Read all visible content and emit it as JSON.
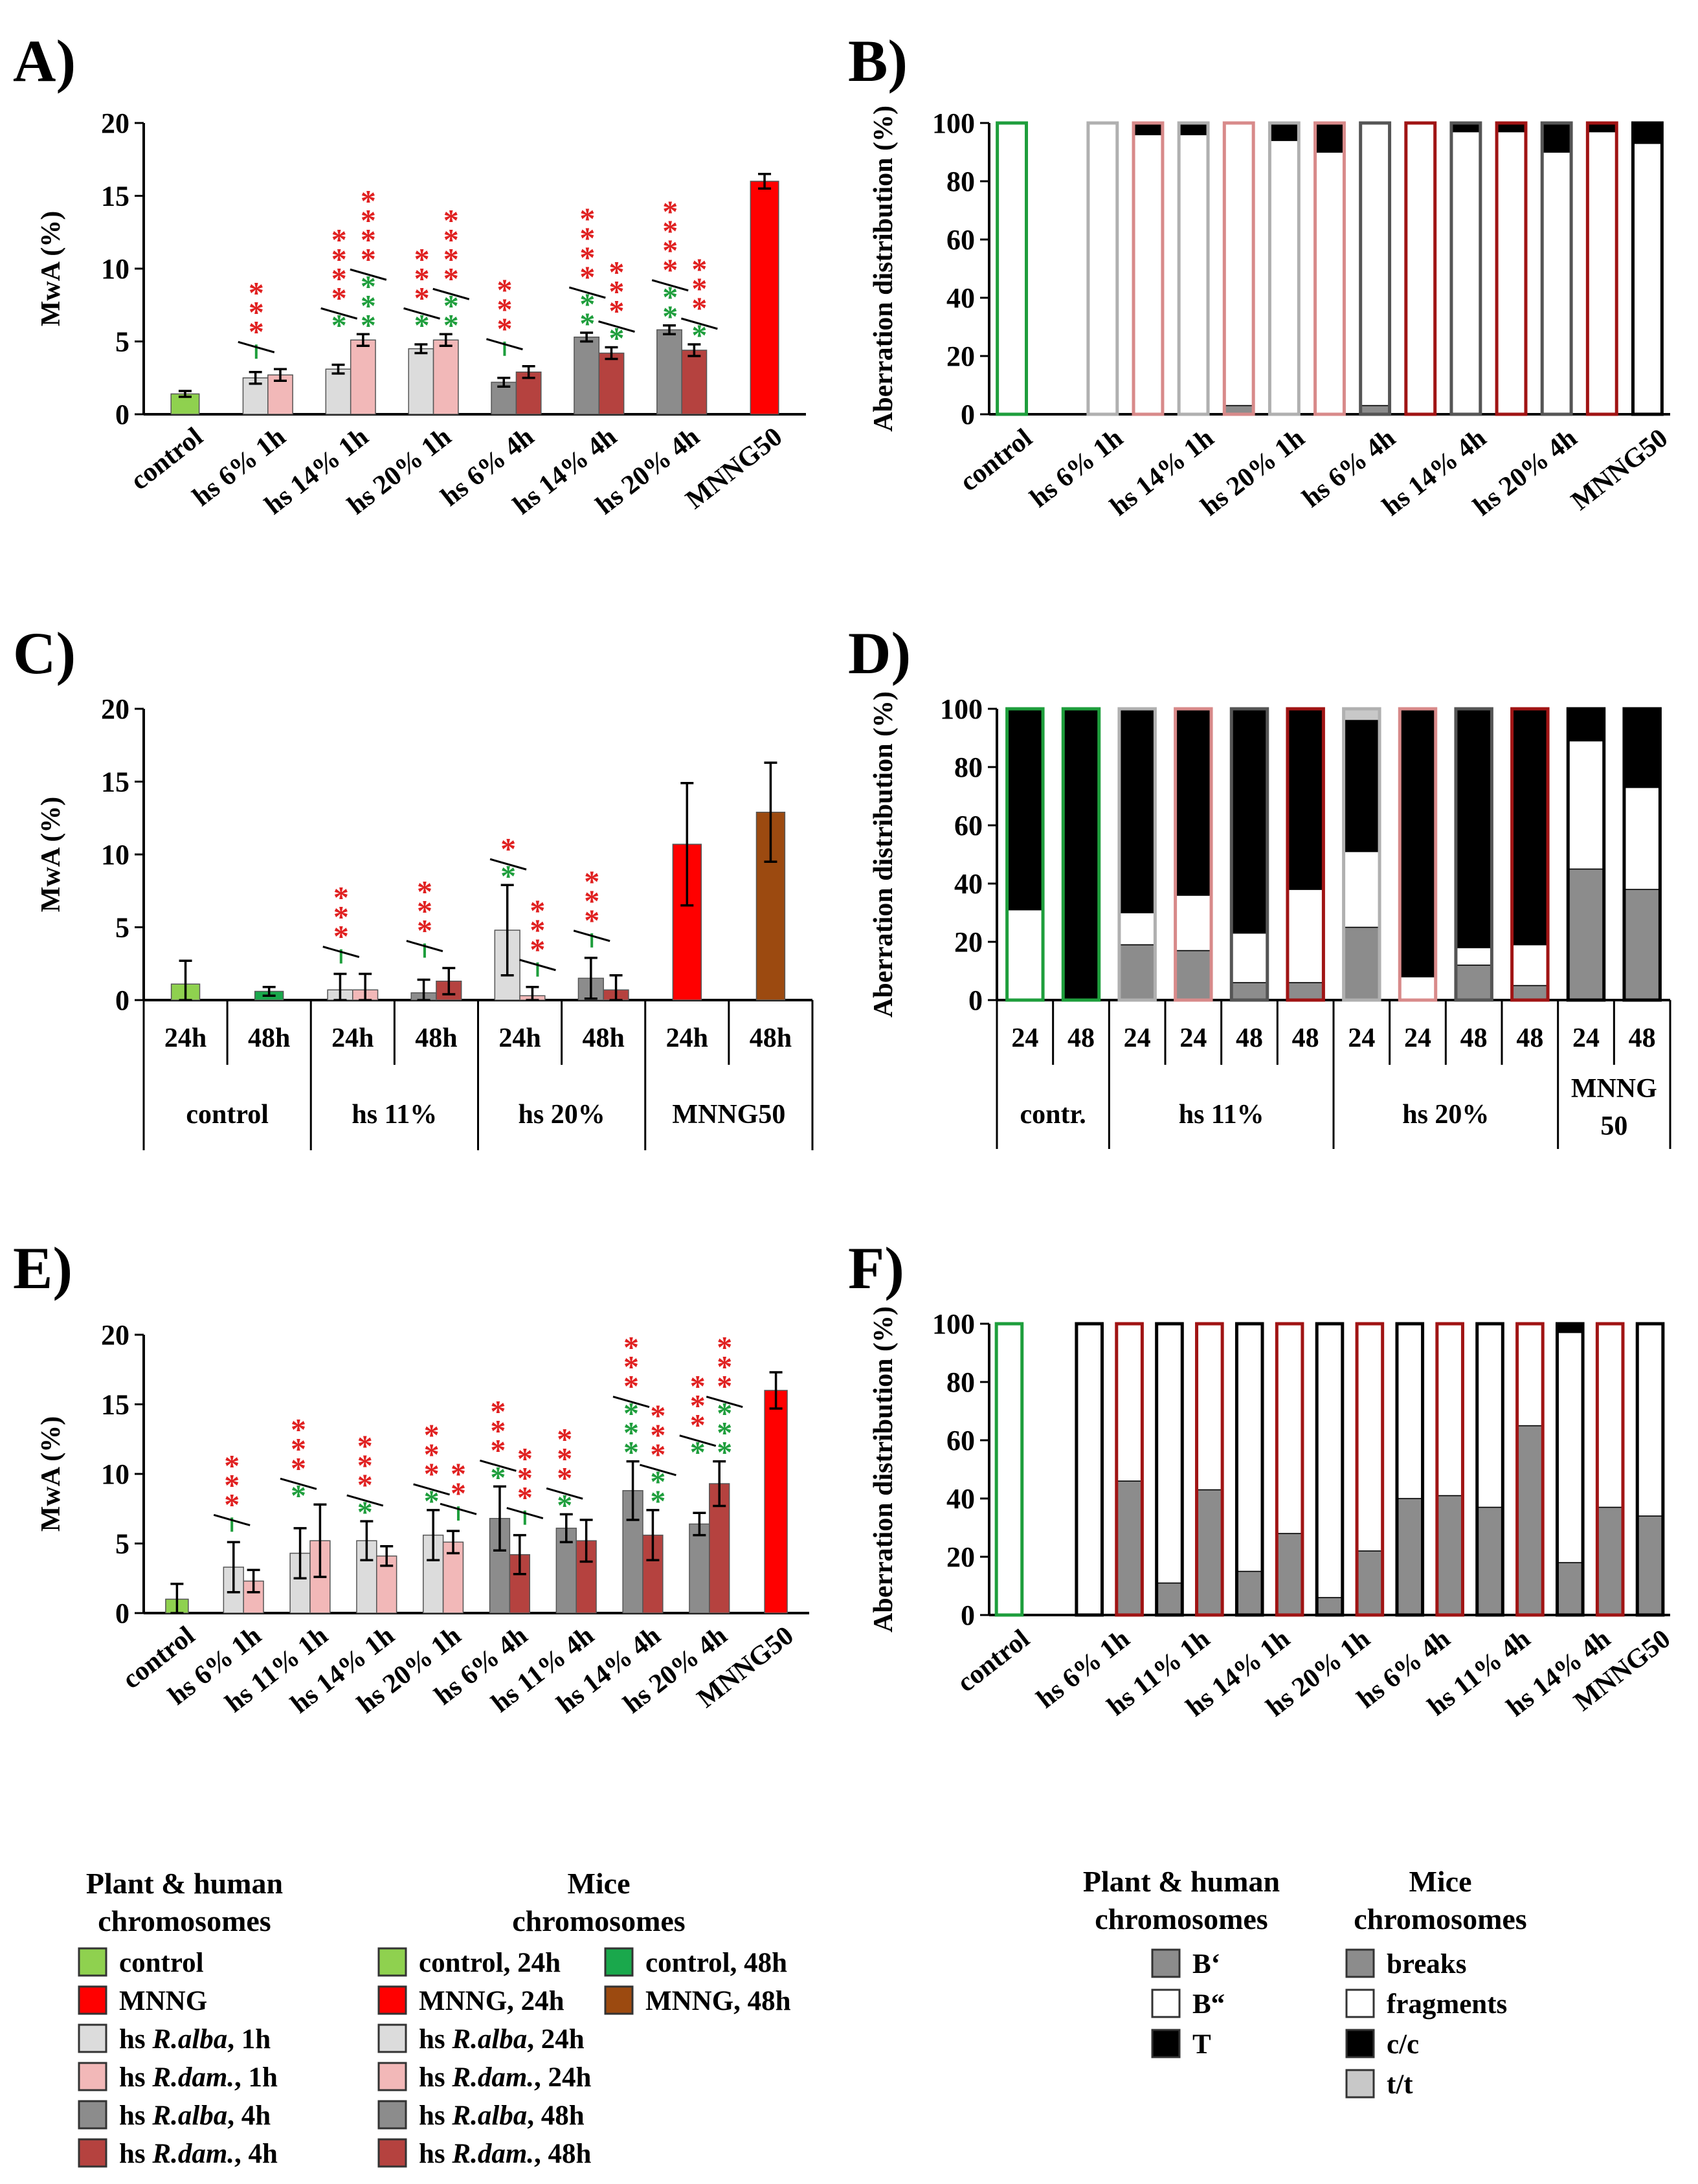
{
  "colors": {
    "control": "#8fd14f",
    "control48": "#1aa84c",
    "mnng": "#ff0000",
    "mnng48": "#9c4a10",
    "ralba": "#dcdcdc",
    "rdam": "#f2b8b8",
    "ralba4": "#8c8c8c",
    "rdam4": "#b5423f",
    "green": "#1e9e3c",
    "red": "#e02020",
    "darkred": "#a01414",
    "axis": "#000000"
  },
  "chart_data": [
    {
      "id": "A",
      "type": "bar",
      "panel_label": "A)",
      "ylabel": "MwA (%)",
      "ylim": [
        0,
        20
      ],
      "yticks": [
        "0",
        "5",
        "10",
        "15",
        "20"
      ],
      "categories": [
        "control",
        "hs 6% 1h",
        "hs 14% 1h",
        "hs 20% 1h",
        "hs 6% 4h",
        "hs 14% 4h",
        "hs 20% 4h",
        "MNNG50"
      ],
      "bars": [
        {
          "group": 0,
          "series": "control",
          "value": 1.4,
          "err": 0.2
        },
        {
          "group": 1,
          "series": "hs R.alba, 1h",
          "value": 2.5,
          "err": 0.4
        },
        {
          "group": 1,
          "series": "hs R.dam., 1h",
          "value": 2.7,
          "err": 0.4
        },
        {
          "group": 2,
          "series": "hs R.alba, 1h",
          "value": 3.1,
          "err": 0.3
        },
        {
          "group": 2,
          "series": "hs R.dam., 1h",
          "value": 5.1,
          "err": 0.4
        },
        {
          "group": 3,
          "series": "hs R.alba, 1h",
          "value": 4.5,
          "err": 0.3
        },
        {
          "group": 3,
          "series": "hs R.dam., 1h",
          "value": 5.1,
          "err": 0.4
        },
        {
          "group": 4,
          "series": "hs R.alba, 4h",
          "value": 2.2,
          "err": 0.3
        },
        {
          "group": 4,
          "series": "hs R.dam., 4h",
          "value": 2.9,
          "err": 0.4
        },
        {
          "group": 5,
          "series": "hs R.alba, 4h",
          "value": 5.3,
          "err": 0.3
        },
        {
          "group": 5,
          "series": "hs R.dam., 4h",
          "value": 4.2,
          "err": 0.4
        },
        {
          "group": 6,
          "series": "hs R.alba, 4h",
          "value": 5.8,
          "err": 0.3
        },
        {
          "group": 6,
          "series": "hs R.dam., 4h",
          "value": 4.4,
          "err": 0.4
        },
        {
          "group": 7,
          "series": "MNNG",
          "value": 16.0,
          "err": 0.5
        }
      ]
    },
    {
      "id": "B",
      "type": "bar",
      "panel_label": "B)",
      "stacked": true,
      "ylabel": "Aberration distribution (%)",
      "ylim": [
        0,
        100
      ],
      "yticks": [
        "0",
        "20",
        "40",
        "60",
        "80",
        "100"
      ],
      "categories": [
        "control",
        "hs 6% 1h",
        "hs 14% 1h",
        "hs 20% 1h",
        "hs 6% 4h",
        "hs 14% 4h",
        "hs 20% 4h",
        "MNNG50"
      ],
      "bars": [
        {
          "slot": 0,
          "border": "green",
          "B1": 0,
          "B2": 100,
          "T": 0
        },
        {
          "slot": 2,
          "border": "ltgray",
          "B1": 0,
          "B2": 100,
          "T": 0
        },
        {
          "slot": 3,
          "border": "pink",
          "B1": 0,
          "B2": 96,
          "T": 4
        },
        {
          "slot": 4,
          "border": "ltgray",
          "B1": 0,
          "B2": 96,
          "T": 4
        },
        {
          "slot": 5,
          "border": "pink",
          "B1": 3,
          "B2": 97,
          "T": 0
        },
        {
          "slot": 6,
          "border": "ltgray",
          "B1": 0,
          "B2": 94,
          "T": 6
        },
        {
          "slot": 7,
          "border": "pink",
          "B1": 0,
          "B2": 90,
          "T": 10
        },
        {
          "slot": 8,
          "border": "darkgray",
          "B1": 3,
          "B2": 97,
          "T": 0
        },
        {
          "slot": 9,
          "border": "darkred",
          "B1": 0,
          "B2": 100,
          "T": 0
        },
        {
          "slot": 10,
          "border": "darkgray",
          "B1": 0,
          "B2": 97,
          "T": 3
        },
        {
          "slot": 11,
          "border": "darkred",
          "B1": 0,
          "B2": 97,
          "T": 3
        },
        {
          "slot": 12,
          "border": "darkgray",
          "B1": 0,
          "B2": 90,
          "T": 10
        },
        {
          "slot": 13,
          "border": "darkred",
          "B1": 0,
          "B2": 97,
          "T": 3
        },
        {
          "slot": 14,
          "border": "black",
          "B1": 0,
          "B2": 93,
          "T": 7
        }
      ]
    },
    {
      "id": "C",
      "type": "bar",
      "panel_label": "C)",
      "ylabel": "MwA (%)",
      "ylim": [
        0,
        20
      ],
      "yticks": [
        "0",
        "5",
        "10",
        "15",
        "20"
      ],
      "groups": [
        "24h",
        "48h",
        "24h",
        "48h",
        "24h",
        "48h",
        "24h",
        "48h"
      ],
      "supergroups": [
        "control",
        "hs 11%",
        "hs  20%",
        "MNNG50"
      ],
      "bars": [
        {
          "group": 0,
          "series": "control, 24h",
          "value": 1.1,
          "err": 1.6
        },
        {
          "group": 1,
          "series": "control, 48h",
          "value": 0.6,
          "err": 0.3
        },
        {
          "group": 2,
          "series": "hs R.alba, 24h",
          "value": 0.7,
          "err": 1.1
        },
        {
          "group": 2,
          "series": "hs R.dam., 24h",
          "value": 0.7,
          "err": 1.1
        },
        {
          "group": 3,
          "series": "hs R.alba, 48h",
          "value": 0.5,
          "err": 0.9
        },
        {
          "group": 3,
          "series": "hs R.dam., 48h",
          "value": 1.3,
          "err": 0.9
        },
        {
          "group": 4,
          "series": "hs R.alba, 24h",
          "value": 4.8,
          "err": 3.1
        },
        {
          "group": 4,
          "series": "hs R.dam., 24h",
          "value": 0.3,
          "err": 0.6
        },
        {
          "group": 5,
          "series": "hs R.alba, 48h",
          "value": 1.5,
          "err": 1.4
        },
        {
          "group": 5,
          "series": "hs R.dam., 48h",
          "value": 0.7,
          "err": 1.0
        },
        {
          "group": 6,
          "series": "MNNG, 24h",
          "value": 10.7,
          "err": 4.2
        },
        {
          "group": 7,
          "series": "MNNG, 48h",
          "value": 12.9,
          "err": 3.4
        }
      ]
    },
    {
      "id": "D",
      "type": "bar",
      "panel_label": "D)",
      "stacked": true,
      "ylabel": "Aberration distribution (%)",
      "ylim": [
        0,
        100
      ],
      "yticks": [
        "0",
        "20",
        "40",
        "60",
        "80",
        "100"
      ],
      "bar_labels": [
        "24",
        "48",
        "24",
        "24",
        "48",
        "48",
        "24",
        "24",
        "48",
        "48",
        "24",
        "48"
      ],
      "supergroups": [
        "contr.",
        "hs 11%",
        "hs 20%",
        "MNNG\n50"
      ],
      "bars": [
        {
          "border": "green",
          "breaks": 0,
          "fragments": 31,
          "cc": 69,
          "tt": 0
        },
        {
          "border": "green",
          "breaks": 0,
          "fragments": 0,
          "cc": 100,
          "tt": 0
        },
        {
          "border": "ltgray",
          "breaks": 19,
          "fragments": 11,
          "cc": 70,
          "tt": 0
        },
        {
          "border": "pink",
          "breaks": 17,
          "fragments": 19,
          "cc": 64,
          "tt": 0
        },
        {
          "border": "darkgray",
          "breaks": 6,
          "fragments": 17,
          "cc": 77,
          "tt": 0
        },
        {
          "border": "darkred",
          "breaks": 6,
          "fragments": 32,
          "cc": 62,
          "tt": 0
        },
        {
          "border": "ltgray",
          "breaks": 25,
          "fragments": 26,
          "cc": 45,
          "tt": 4
        },
        {
          "border": "pink",
          "breaks": 0,
          "fragments": 8,
          "cc": 92,
          "tt": 0
        },
        {
          "border": "darkgray",
          "breaks": 12,
          "fragments": 6,
          "cc": 82,
          "tt": 0
        },
        {
          "border": "darkred",
          "breaks": 5,
          "fragments": 14,
          "cc": 81,
          "tt": 0
        },
        {
          "border": "black",
          "breaks": 45,
          "fragments": 44,
          "cc": 11,
          "tt": 0
        },
        {
          "border": "black",
          "breaks": 38,
          "fragments": 35,
          "cc": 27,
          "tt": 0
        }
      ]
    },
    {
      "id": "E",
      "type": "bar",
      "panel_label": "E)",
      "ylabel": "MwA (%)",
      "ylim": [
        0,
        20
      ],
      "yticks": [
        "0",
        "5",
        "10",
        "15",
        "20"
      ],
      "categories": [
        "control",
        "hs 6% 1h",
        "hs 11% 1h",
        "hs 14% 1h",
        "hs 20% 1h",
        "hs 6% 4h",
        "hs 11% 4h",
        "hs 14% 4h",
        "hs 20% 4h",
        "MNNG50"
      ],
      "bars": [
        {
          "group": 0,
          "series": "control",
          "value": 1.0,
          "err": 1.1
        },
        {
          "group": 1,
          "series": "hs R.alba, 1h",
          "value": 3.3,
          "err": 1.8
        },
        {
          "group": 1,
          "series": "hs R.dam., 1h",
          "value": 2.3,
          "err": 0.8
        },
        {
          "group": 2,
          "series": "hs R.alba, 1h",
          "value": 4.3,
          "err": 1.8
        },
        {
          "group": 2,
          "series": "hs R.dam., 1h",
          "value": 5.2,
          "err": 2.6
        },
        {
          "group": 3,
          "series": "hs R.alba, 1h",
          "value": 5.2,
          "err": 1.4
        },
        {
          "group": 3,
          "series": "hs R.dam., 1h",
          "value": 4.1,
          "err": 0.7
        },
        {
          "group": 4,
          "series": "hs R.alba, 1h",
          "value": 5.6,
          "err": 1.8
        },
        {
          "group": 4,
          "series": "hs R.dam., 1h",
          "value": 5.1,
          "err": 0.8
        },
        {
          "group": 5,
          "series": "hs R.alba, 4h",
          "value": 6.8,
          "err": 2.3
        },
        {
          "group": 5,
          "series": "hs R.dam., 4h",
          "value": 4.2,
          "err": 1.4
        },
        {
          "group": 6,
          "series": "hs R.alba, 4h",
          "value": 6.1,
          "err": 1.0
        },
        {
          "group": 6,
          "series": "hs R.dam., 4h",
          "value": 5.2,
          "err": 1.5
        },
        {
          "group": 7,
          "series": "hs R.alba, 4h",
          "value": 8.8,
          "err": 2.1
        },
        {
          "group": 7,
          "series": "hs R.dam., 4h",
          "value": 5.6,
          "err": 1.8
        },
        {
          "group": 8,
          "series": "hs R.alba, 4h",
          "value": 6.4,
          "err": 0.8
        },
        {
          "group": 8,
          "series": "hs R.dam., 4h",
          "value": 9.3,
          "err": 1.6
        },
        {
          "group": 9,
          "series": "MNNG",
          "value": 16.0,
          "err": 1.3
        }
      ]
    },
    {
      "id": "F",
      "type": "bar",
      "panel_label": "F)",
      "stacked": true,
      "ylabel": "Aberration distribution (%)",
      "ylim": [
        0,
        100
      ],
      "yticks": [
        "0",
        "20",
        "40",
        "60",
        "80",
        "100"
      ],
      "categories": [
        "control",
        "hs 6% 1h",
        "hs 11% 1h",
        "hs 14% 1h",
        "hs 20% 1h",
        "hs 6% 4h",
        "hs 11% 4h",
        "hs 14% 4h",
        "MNNG50"
      ],
      "bars": [
        {
          "slot": 0,
          "border": "green",
          "B1": 0,
          "B2": 100,
          "T": 0
        },
        {
          "slot": 2,
          "border": "black",
          "B1": 0,
          "B2": 100,
          "T": 0
        },
        {
          "slot": 3,
          "border": "darkred",
          "B1": 46,
          "B2": 54,
          "T": 0
        },
        {
          "slot": 4,
          "border": "black",
          "B1": 11,
          "B2": 89,
          "T": 0
        },
        {
          "slot": 5,
          "border": "darkred",
          "B1": 43,
          "B2": 57,
          "T": 0
        },
        {
          "slot": 6,
          "border": "black",
          "B1": 15,
          "B2": 85,
          "T": 0
        },
        {
          "slot": 7,
          "border": "darkred",
          "B1": 28,
          "B2": 72,
          "T": 0
        },
        {
          "slot": 8,
          "border": "black",
          "B1": 6,
          "B2": 94,
          "T": 0
        },
        {
          "slot": 9,
          "border": "darkred",
          "B1": 22,
          "B2": 78,
          "T": 0
        },
        {
          "slot": 10,
          "border": "black",
          "B1": 40,
          "B2": 60,
          "T": 0
        },
        {
          "slot": 11,
          "border": "darkred",
          "B1": 41,
          "B2": 59,
          "T": 0
        },
        {
          "slot": 12,
          "border": "black",
          "B1": 37,
          "B2": 63,
          "T": 0
        },
        {
          "slot": 13,
          "border": "darkred",
          "B1": 65,
          "B2": 35,
          "T": 0
        },
        {
          "slot": 14,
          "border": "black",
          "B1": 18,
          "B2": 79,
          "T": 3
        },
        {
          "slot": 15,
          "border": "darkred",
          "B1": 37,
          "B2": 63,
          "T": 0
        },
        {
          "slot": 16,
          "border": "black",
          "B1": 34,
          "B2": 66,
          "T": 0
        }
      ]
    }
  ],
  "significance_markers": {
    "A": [
      {
        "group": 1,
        "red": "***",
        "green": "-"
      },
      {
        "group": 2,
        "red": "****",
        "green": "*"
      },
      {
        "group": 2,
        "red": "****",
        "green": "***",
        "pos": "right"
      },
      {
        "group": 3,
        "red": "***",
        "green": "*"
      },
      {
        "group": 3,
        "red": "****",
        "green": "**",
        "pos": "right"
      },
      {
        "group": 4,
        "red": "***",
        "green": "-"
      },
      {
        "group": 5,
        "red": "****",
        "green": "**"
      },
      {
        "group": 5,
        "red": "***",
        "green": "*",
        "pos": "right"
      },
      {
        "group": 6,
        "red": "****",
        "green": "**"
      },
      {
        "group": 6,
        "red": "***",
        "green": "*",
        "pos": "right"
      }
    ],
    "C": [
      {
        "group": 2,
        "red": "***",
        "green": "-"
      },
      {
        "group": 3,
        "red": "***",
        "green": "-"
      },
      {
        "group": 4,
        "red": "*",
        "green": "*"
      },
      {
        "group": 4,
        "red": "***",
        "green": "-",
        "pos": "right"
      },
      {
        "group": 5,
        "red": "***",
        "green": "-"
      }
    ],
    "E": [
      {
        "group": 1,
        "red": "***",
        "green": "-"
      },
      {
        "group": 2,
        "red": "***",
        "green": "*"
      },
      {
        "group": 3,
        "red": "***",
        "green": "*"
      },
      {
        "group": 4,
        "red": "***",
        "green": "*"
      },
      {
        "group": 4,
        "red": "**",
        "green": "-",
        "pos": "right"
      },
      {
        "group": 5,
        "red": "***",
        "green": "*"
      },
      {
        "group": 5,
        "red": "***",
        "green": "-",
        "pos": "right"
      },
      {
        "group": 6,
        "red": "***",
        "green": "*"
      },
      {
        "group": 7,
        "red": "***",
        "green": "***"
      },
      {
        "group": 7,
        "red": "***",
        "green": "**",
        "pos": "right"
      },
      {
        "group": 8,
        "red": "***",
        "green": "*"
      },
      {
        "group": 8,
        "red": "***",
        "green": "***",
        "pos": "right"
      }
    ]
  },
  "legend_left": {
    "plant_human_title": [
      "Plant & human",
      "chromosomes"
    ],
    "mice_title": [
      "Mice",
      "chromosomes"
    ],
    "plant_human_items": [
      {
        "label": "control",
        "fill": "control"
      },
      {
        "label": "MNNG",
        "fill": "mnng"
      },
      {
        "pre": "hs ",
        "it": "R.alba",
        "post": ", 1h",
        "fill": "ralba"
      },
      {
        "pre": "hs ",
        "it": "R.dam.",
        "post": ", 1h",
        "fill": "rdam"
      },
      {
        "pre": "hs ",
        "it": "R.alba",
        "post": ", 4h",
        "fill": "ralba4"
      },
      {
        "pre": "hs ",
        "it": "R.dam.",
        "post": ", 4h",
        "fill": "rdam4"
      }
    ],
    "mice_items": [
      {
        "label": "control, 24h",
        "fill": "control"
      },
      {
        "label": "MNNG, 24h",
        "fill": "mnng"
      },
      {
        "pre": "hs ",
        "it": "R.alba",
        "post": ", 24h",
        "fill": "ralba"
      },
      {
        "pre": "hs ",
        "it": "R.dam.",
        "post": ", 24h",
        "fill": "rdam"
      },
      {
        "pre": "hs ",
        "it": "R.alba",
        "post": ", 48h",
        "fill": "ralba4"
      },
      {
        "pre": "hs ",
        "it": "R.dam.",
        "post": ", 48h",
        "fill": "rdam4"
      }
    ],
    "mice_items2": [
      {
        "label": "control, 48h",
        "fill": "control48"
      },
      {
        "label": "MNNG, 48h",
        "fill": "mnng48"
      }
    ]
  },
  "legend_right": {
    "plant_human_title": [
      "Plant & human",
      "chromosomes"
    ],
    "mice_title": [
      "Mice",
      "chromosomes"
    ],
    "plant_human_items": [
      {
        "label": "B‘",
        "fill": "#8c8c8c"
      },
      {
        "label": "B“",
        "fill": "#ffffff"
      },
      {
        "label": "T",
        "fill": "#000000"
      }
    ],
    "mice_items": [
      {
        "label": "breaks",
        "fill": "#8c8c8c"
      },
      {
        "label": "fragments",
        "fill": "#ffffff"
      },
      {
        "label": "c/c",
        "fill": "#000000"
      },
      {
        "label": "t/t",
        "fill": "#c8c8c8"
      }
    ]
  }
}
